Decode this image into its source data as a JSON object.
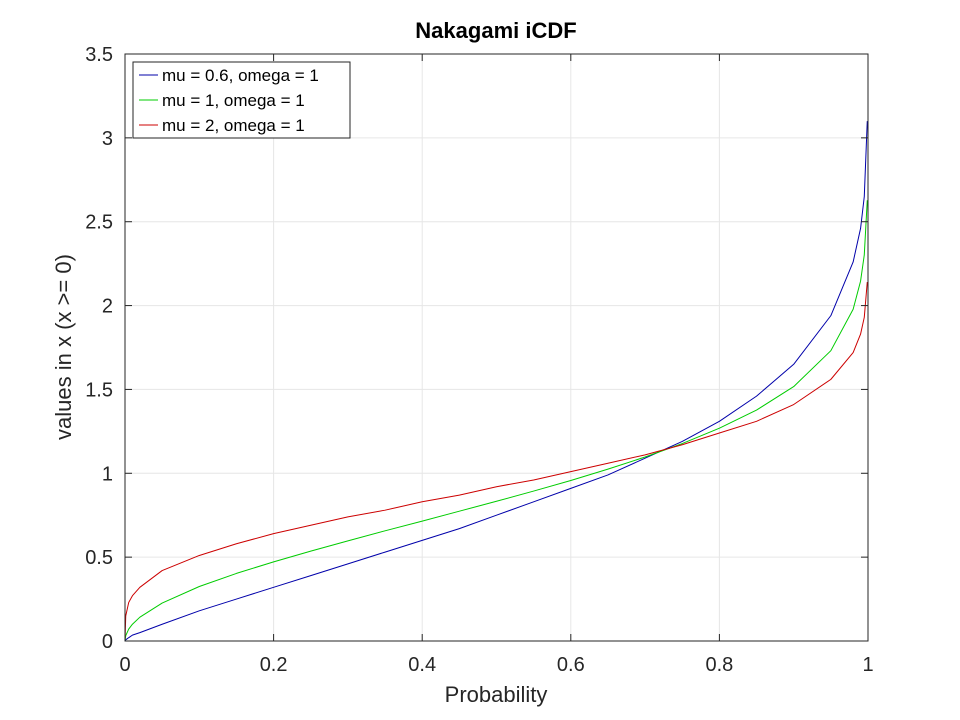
{
  "chart_data": {
    "type": "line",
    "title": "Nakagami iCDF",
    "xlabel": "Probability",
    "ylabel": "values in x (x >= 0)",
    "xlim": [
      0,
      1
    ],
    "ylim": [
      0,
      3.5
    ],
    "xticks": [
      0,
      0.2,
      0.4,
      0.6,
      0.8,
      1
    ],
    "xtick_labels": [
      "0",
      "0.2",
      "0.4",
      "0.6",
      "0.8",
      "1"
    ],
    "yticks": [
      0,
      0.5,
      1,
      1.5,
      2,
      2.5,
      3,
      3.5
    ],
    "ytick_labels": [
      "0",
      "0.5",
      "1",
      "1.5",
      "2",
      "2.5",
      "3",
      "3.5"
    ],
    "grid": true,
    "legend_position": "top-left",
    "x": [
      0,
      0.001,
      0.005,
      0.01,
      0.02,
      0.05,
      0.1,
      0.15,
      0.2,
      0.25,
      0.3,
      0.35,
      0.4,
      0.45,
      0.5,
      0.55,
      0.6,
      0.65,
      0.7,
      0.75,
      0.8,
      0.85,
      0.9,
      0.95,
      0.98,
      0.99,
      0.995,
      0.999
    ],
    "series": [
      {
        "name": "mu = 0.6, omega = 1",
        "color": "#0000aa",
        "values": [
          0,
          0.007,
          0.02,
          0.035,
          0.05,
          0.1,
          0.18,
          0.25,
          0.32,
          0.39,
          0.46,
          0.53,
          0.6,
          0.67,
          0.75,
          0.83,
          0.91,
          0.99,
          1.09,
          1.19,
          1.31,
          1.46,
          1.65,
          1.94,
          2.26,
          2.46,
          2.65,
          3.1
        ]
      },
      {
        "name": "mu = 1, omega = 1",
        "color": "#00cc00",
        "values": [
          0,
          0.032,
          0.071,
          0.1,
          0.142,
          0.226,
          0.325,
          0.403,
          0.472,
          0.536,
          0.597,
          0.657,
          0.715,
          0.774,
          0.833,
          0.894,
          0.957,
          1.025,
          1.097,
          1.177,
          1.269,
          1.377,
          1.517,
          1.731,
          1.978,
          2.146,
          2.302,
          2.628
        ]
      },
      {
        "name": "mu = 2, omega = 1",
        "color": "#cc0000",
        "values": [
          0,
          0.15,
          0.23,
          0.27,
          0.32,
          0.42,
          0.51,
          0.58,
          0.64,
          0.69,
          0.74,
          0.78,
          0.83,
          0.87,
          0.92,
          0.96,
          1.01,
          1.06,
          1.11,
          1.17,
          1.24,
          1.31,
          1.41,
          1.56,
          1.72,
          1.83,
          1.93,
          2.14
        ]
      }
    ]
  }
}
